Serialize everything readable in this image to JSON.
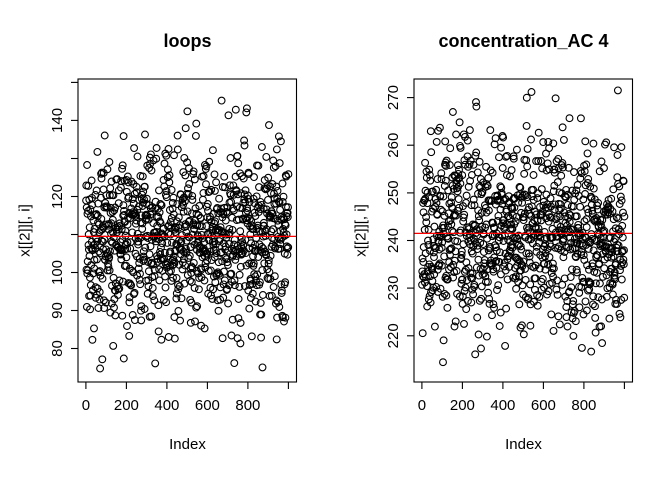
{
  "figure": {
    "background": "#ffffff",
    "panel_count": 2
  },
  "chart_data": [
    {
      "type": "scatter",
      "title": "loops",
      "xlabel": "Index",
      "ylabel": "x[[2]][, i]",
      "n_points": 1000,
      "x_start": 1,
      "x_end": 1000,
      "xlim": [
        -38.96,
        1039.96
      ],
      "ylim": [
        71.2,
        150.9
      ],
      "x_ticks": [
        0,
        200,
        400,
        600,
        800,
        1000
      ],
      "x_tick_labels": [
        "0",
        "200",
        "400",
        "600",
        "800",
        ""
      ],
      "y_ticks": [
        80,
        90,
        100,
        110,
        120,
        130,
        140,
        150
      ],
      "y_tick_labels": [
        "80",
        "90",
        "100",
        "",
        "120",
        "",
        "140",
        ""
      ],
      "distribution": {
        "mean": 109.5,
        "sd": 12,
        "min": 74.5,
        "max": 148
      },
      "ref_line": {
        "value": 109.5,
        "color": "#ff0000"
      },
      "point": {
        "shape": "open-circle",
        "color": "#000000"
      },
      "grid": false,
      "legend": null
    },
    {
      "type": "scatter",
      "title": "concentration_AC 4",
      "xlabel": "Index",
      "ylabel": "x[[2]][, i]",
      "n_points": 1000,
      "x_start": 1,
      "x_end": 1000,
      "xlim": [
        -38.96,
        1039.96
      ],
      "ylim": [
        210.3,
        273.9
      ],
      "x_ticks": [
        0,
        200,
        400,
        600,
        800,
        1000
      ],
      "x_tick_labels": [
        "0",
        "200",
        "400",
        "600",
        "800",
        ""
      ],
      "y_ticks": [
        220,
        230,
        240,
        250,
        260,
        270
      ],
      "y_tick_labels": [
        "220",
        "230",
        "240",
        "250",
        "260",
        "270"
      ],
      "distribution": {
        "mean": 241.5,
        "sd": 9.5,
        "min": 213,
        "max": 272.7
      },
      "ref_line": {
        "value": 241.5,
        "color": "#ff0000"
      },
      "point": {
        "shape": "open-circle",
        "color": "#000000"
      },
      "grid": false,
      "legend": null
    }
  ]
}
